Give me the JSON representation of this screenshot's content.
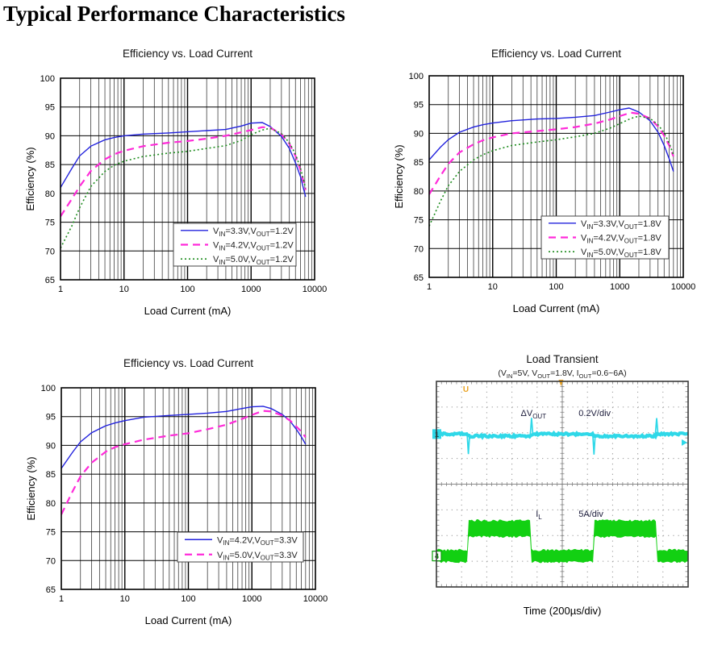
{
  "page": {
    "title": "Typical Performance Characteristics"
  },
  "chart_data": [
    {
      "type": "line",
      "id": "efficiency-vout-1v2",
      "title": "Efficiency vs. Load Current",
      "xlabel": "Load Current (mA)",
      "ylabel": "Efficiency (%)",
      "x_scale": "log",
      "xlim": [
        1,
        10000
      ],
      "ylim": [
        65,
        100
      ],
      "xticks": [
        "1",
        "10",
        "100",
        "1000",
        "10000"
      ],
      "yticks": [
        100,
        95,
        90,
        85,
        80,
        75,
        70,
        65
      ],
      "grid": true,
      "legend_position": "lower-right",
      "series": [
        {
          "name": "V_{IN}=3.3V,V_{OUT}=1.2V",
          "color": "#2222dd",
          "style": "solid",
          "points": [
            [
              1,
              81
            ],
            [
              1.5,
              84.3
            ],
            [
              2,
              86.5
            ],
            [
              3,
              88.2
            ],
            [
              5,
              89.3
            ],
            [
              7,
              89.7
            ],
            [
              10,
              90
            ],
            [
              20,
              90.3
            ],
            [
              50,
              90.5
            ],
            [
              100,
              90.7
            ],
            [
              200,
              90.9
            ],
            [
              400,
              91.1
            ],
            [
              700,
              91.7
            ],
            [
              1000,
              92.2
            ],
            [
              1500,
              92.3
            ],
            [
              2000,
              91.6
            ],
            [
              3000,
              89.9
            ],
            [
              4000,
              87.8
            ],
            [
              5000,
              85.3
            ],
            [
              6000,
              82.9
            ],
            [
              7200,
              79.4
            ]
          ]
        },
        {
          "name": "V_{IN}=4.2V,V_{OUT}=1.2V",
          "color": "#ff2ad9",
          "style": "dashed",
          "points": [
            [
              1,
              76
            ],
            [
              1.5,
              79
            ],
            [
              2,
              81.2
            ],
            [
              3,
              83.9
            ],
            [
              5,
              85.9
            ],
            [
              7,
              86.8
            ],
            [
              10,
              87.4
            ],
            [
              20,
              88.2
            ],
            [
              50,
              88.8
            ],
            [
              100,
              89.1
            ],
            [
              200,
              89.5
            ],
            [
              400,
              90
            ],
            [
              700,
              90.6
            ],
            [
              1000,
              91
            ],
            [
              1500,
              91.5
            ],
            [
              2000,
              91.4
            ],
            [
              3000,
              90.3
            ],
            [
              4000,
              88.6
            ],
            [
              5000,
              86.5
            ],
            [
              6000,
              84.1
            ],
            [
              7200,
              80.6
            ]
          ]
        },
        {
          "name": "V_{IN}=5.0V,V_{OUT}=1.2V",
          "color": "#1e8c1e",
          "style": "dotted",
          "points": [
            [
              1,
              70.5
            ],
            [
              1.5,
              74.3
            ],
            [
              2,
              77.5
            ],
            [
              3,
              81.2
            ],
            [
              5,
              83.8
            ],
            [
              7,
              84.9
            ],
            [
              10,
              85.6
            ],
            [
              20,
              86.4
            ],
            [
              50,
              87
            ],
            [
              100,
              87.3
            ],
            [
              200,
              87.8
            ],
            [
              400,
              88.3
            ],
            [
              700,
              89.2
            ],
            [
              1000,
              90.2
            ],
            [
              1500,
              91
            ],
            [
              2000,
              91.3
            ],
            [
              3000,
              90.4
            ],
            [
              4000,
              88.8
            ],
            [
              5000,
              86.8
            ],
            [
              6000,
              84.4
            ],
            [
              7200,
              80.9
            ]
          ]
        }
      ]
    },
    {
      "type": "line",
      "id": "efficiency-vout-1v8",
      "title": "Efficiency vs. Load Current",
      "xlabel": "Load Current (mA)",
      "ylabel": "Efficiency (%)",
      "x_scale": "log",
      "xlim": [
        1,
        10000
      ],
      "ylim": [
        65,
        100
      ],
      "xticks": [
        "1",
        "10",
        "100",
        "1000",
        "10000"
      ],
      "yticks": [
        100,
        95,
        90,
        85,
        80,
        75,
        70,
        65
      ],
      "grid": true,
      "legend_position": "lower-right",
      "series": [
        {
          "name": "V_{IN}=3.3V,V_{OUT}=1.8V",
          "color": "#2222dd",
          "style": "solid",
          "points": [
            [
              1,
              85.4
            ],
            [
              1.5,
              87.6
            ],
            [
              2,
              88.9
            ],
            [
              3,
              90.2
            ],
            [
              5,
              91.1
            ],
            [
              7,
              91.5
            ],
            [
              10,
              91.8
            ],
            [
              20,
              92.2
            ],
            [
              50,
              92.5
            ],
            [
              100,
              92.6
            ],
            [
              200,
              92.8
            ],
            [
              400,
              93.1
            ],
            [
              700,
              93.7
            ],
            [
              1000,
              94.1
            ],
            [
              1400,
              94.4
            ],
            [
              2000,
              93.7
            ],
            [
              3000,
              92.2
            ],
            [
              4000,
              90.2
            ],
            [
              5000,
              87.9
            ],
            [
              6000,
              85.6
            ],
            [
              7000,
              83.4
            ]
          ]
        },
        {
          "name": "V_{IN}=4.2V,V_{OUT}=1.8V",
          "color": "#ff2ad9",
          "style": "dashed",
          "points": [
            [
              1,
              79.4
            ],
            [
              1.5,
              82.6
            ],
            [
              2,
              84.7
            ],
            [
              3,
              86.7
            ],
            [
              5,
              88.1
            ],
            [
              7,
              88.8
            ],
            [
              10,
              89.3
            ],
            [
              20,
              90
            ],
            [
              50,
              90.4
            ],
            [
              100,
              90.7
            ],
            [
              200,
              91.1
            ],
            [
              400,
              91.7
            ],
            [
              700,
              92.4
            ],
            [
              1000,
              93
            ],
            [
              1500,
              93.6
            ],
            [
              2000,
              93.4
            ],
            [
              3000,
              92.6
            ],
            [
              4000,
              91.2
            ],
            [
              5000,
              89.6
            ],
            [
              6000,
              87.9
            ],
            [
              7000,
              86
            ]
          ]
        },
        {
          "name": "V_{IN}=5.0V,V_{OUT}=1.8V",
          "color": "#1e8c1e",
          "style": "dotted",
          "points": [
            [
              1,
              73.9
            ],
            [
              1.5,
              78.2
            ],
            [
              2,
              80.9
            ],
            [
              3,
              83.4
            ],
            [
              5,
              85.4
            ],
            [
              7,
              86.3
            ],
            [
              10,
              87
            ],
            [
              20,
              87.9
            ],
            [
              50,
              88.5
            ],
            [
              100,
              88.9
            ],
            [
              200,
              89.4
            ],
            [
              400,
              90
            ],
            [
              700,
              90.9
            ],
            [
              1000,
              91.7
            ],
            [
              1500,
              92.6
            ],
            [
              2000,
              93
            ],
            [
              3000,
              92.6
            ],
            [
              4000,
              91.5
            ],
            [
              5000,
              90.1
            ],
            [
              6000,
              88.3
            ],
            [
              7000,
              86.3
            ]
          ]
        }
      ]
    },
    {
      "type": "line",
      "id": "efficiency-vout-3v3",
      "title": "Efficiency vs. Load Current",
      "xlabel": "Load Current (mA)",
      "ylabel": "Efficiency (%)",
      "x_scale": "log",
      "xlim": [
        1,
        10000
      ],
      "ylim": [
        65,
        100
      ],
      "xticks": [
        "1",
        "10",
        "100",
        "1000",
        "10000"
      ],
      "yticks": [
        100,
        95,
        90,
        85,
        80,
        75,
        70,
        65
      ],
      "grid": true,
      "legend_position": "lower-right",
      "series": [
        {
          "name": "V_{IN}=4.2V,V_{OUT}=3.3V",
          "color": "#2222dd",
          "style": "solid",
          "points": [
            [
              1,
              86
            ],
            [
              1.5,
              88.8
            ],
            [
              2,
              90.6
            ],
            [
              3,
              92.2
            ],
            [
              5,
              93.4
            ],
            [
              7,
              93.9
            ],
            [
              10,
              94.3
            ],
            [
              20,
              94.9
            ],
            [
              50,
              95.2
            ],
            [
              100,
              95.4
            ],
            [
              200,
              95.6
            ],
            [
              400,
              95.9
            ],
            [
              700,
              96.4
            ],
            [
              1000,
              96.7
            ],
            [
              1500,
              96.8
            ],
            [
              2000,
              96.4
            ],
            [
              3000,
              95.4
            ],
            [
              4000,
              94.2
            ],
            [
              5000,
              92.8
            ],
            [
              6000,
              91.5
            ],
            [
              7000,
              90.2
            ]
          ]
        },
        {
          "name": "V_{IN}=5.0V,V_{OUT}=3.3V",
          "color": "#ff2ad9",
          "style": "dashed",
          "points": [
            [
              1,
              78
            ],
            [
              1.5,
              82
            ],
            [
              2,
              84.6
            ],
            [
              3,
              87
            ],
            [
              5,
              88.9
            ],
            [
              7,
              89.7
            ],
            [
              10,
              90.2
            ],
            [
              20,
              91
            ],
            [
              50,
              91.7
            ],
            [
              100,
              92.1
            ],
            [
              200,
              92.8
            ],
            [
              400,
              93.6
            ],
            [
              700,
              94.6
            ],
            [
              1000,
              95.3
            ],
            [
              1500,
              96
            ],
            [
              2000,
              95.9
            ],
            [
              3000,
              95.2
            ],
            [
              4000,
              94.3
            ],
            [
              5000,
              93.3
            ],
            [
              6000,
              92.4
            ],
            [
              7000,
              91.4
            ]
          ]
        }
      ]
    },
    {
      "type": "line",
      "subtype": "oscilloscope",
      "id": "load-transient",
      "title": "Load Transient",
      "subtitle": "(V_{IN}=5V, V_{OUT}=1.8V, I_{OUT}=0.6~6A)",
      "xlabel": "Time (200µs/div)",
      "x_divisions": 10,
      "y_divisions": 8,
      "traces": [
        {
          "name": "output-voltage-deviation",
          "label": "ΔV_{OUT}",
          "scale": "0.2V/div",
          "color": "#2fd8e8",
          "level_div": 2.05,
          "droop_div": 0.08,
          "channel_marker": "1",
          "spikes": [
            {
              "x_div": 1.27,
              "dir": "down",
              "amp_div": 0.78
            },
            {
              "x_div": 3.78,
              "dir": "up",
              "amp_div": 0.63
            },
            {
              "x_div": 6.26,
              "dir": "down",
              "amp_div": 0.8
            },
            {
              "x_div": 8.75,
              "dir": "up",
              "amp_div": 0.62
            }
          ]
        },
        {
          "name": "load-current",
          "label": "I_{L}",
          "scale": "5A/div",
          "color": "#12d012",
          "channel_marker": "4",
          "low_top_div": 6.56,
          "low_bottom_div": 7.03,
          "high_top_div": 5.41,
          "high_bottom_div": 6.05,
          "step_edges_div": [
            1.25,
            3.76,
            6.24,
            8.74
          ]
        }
      ],
      "trigger_marker": {
        "label": "U",
        "x_div": 1.17,
        "top_tick_x_div": 4.95,
        "color": "#eba21f"
      }
    }
  ]
}
